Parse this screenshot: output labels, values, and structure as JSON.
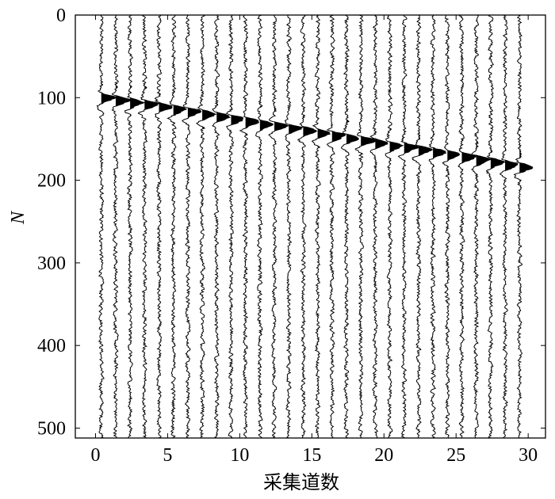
{
  "chart_data": {
    "type": "seismic-wiggle",
    "xlabel": "采集道数",
    "ylabel": "N",
    "xlim": [
      -1.4,
      31.2
    ],
    "ylim": [
      0,
      512
    ],
    "y_inverted": true,
    "xticks": [
      0,
      5,
      10,
      15,
      20,
      25,
      30
    ],
    "xtick_labels": [
      "0",
      "5",
      "10",
      "15",
      "20",
      "25",
      "30"
    ],
    "yticks": [
      0,
      100,
      200,
      300,
      400,
      500
    ],
    "ytick_labels": [
      "0",
      "100",
      "200",
      "300",
      "400",
      "500"
    ],
    "grid": false,
    "trace_count": 30,
    "trace_positions": [
      0.4,
      1.4,
      2.4,
      3.4,
      4.4,
      5.4,
      6.4,
      7.4,
      8.4,
      9.4,
      10.4,
      11.4,
      12.4,
      13.4,
      14.4,
      15.4,
      16.4,
      17.4,
      18.4,
      19.4,
      20.4,
      21.4,
      22.4,
      23.4,
      24.4,
      25.4,
      26.4,
      27.4,
      28.4,
      29.4
    ],
    "event_arrival_N": [
      98,
      101,
      104,
      106,
      109,
      112,
      115,
      118,
      121,
      124,
      127,
      130,
      132,
      135,
      138,
      141,
      144,
      147,
      150,
      153,
      156,
      158,
      161,
      164,
      167,
      170,
      173,
      176,
      179,
      182
    ],
    "positive_fill": true,
    "line_color": "#000000"
  }
}
